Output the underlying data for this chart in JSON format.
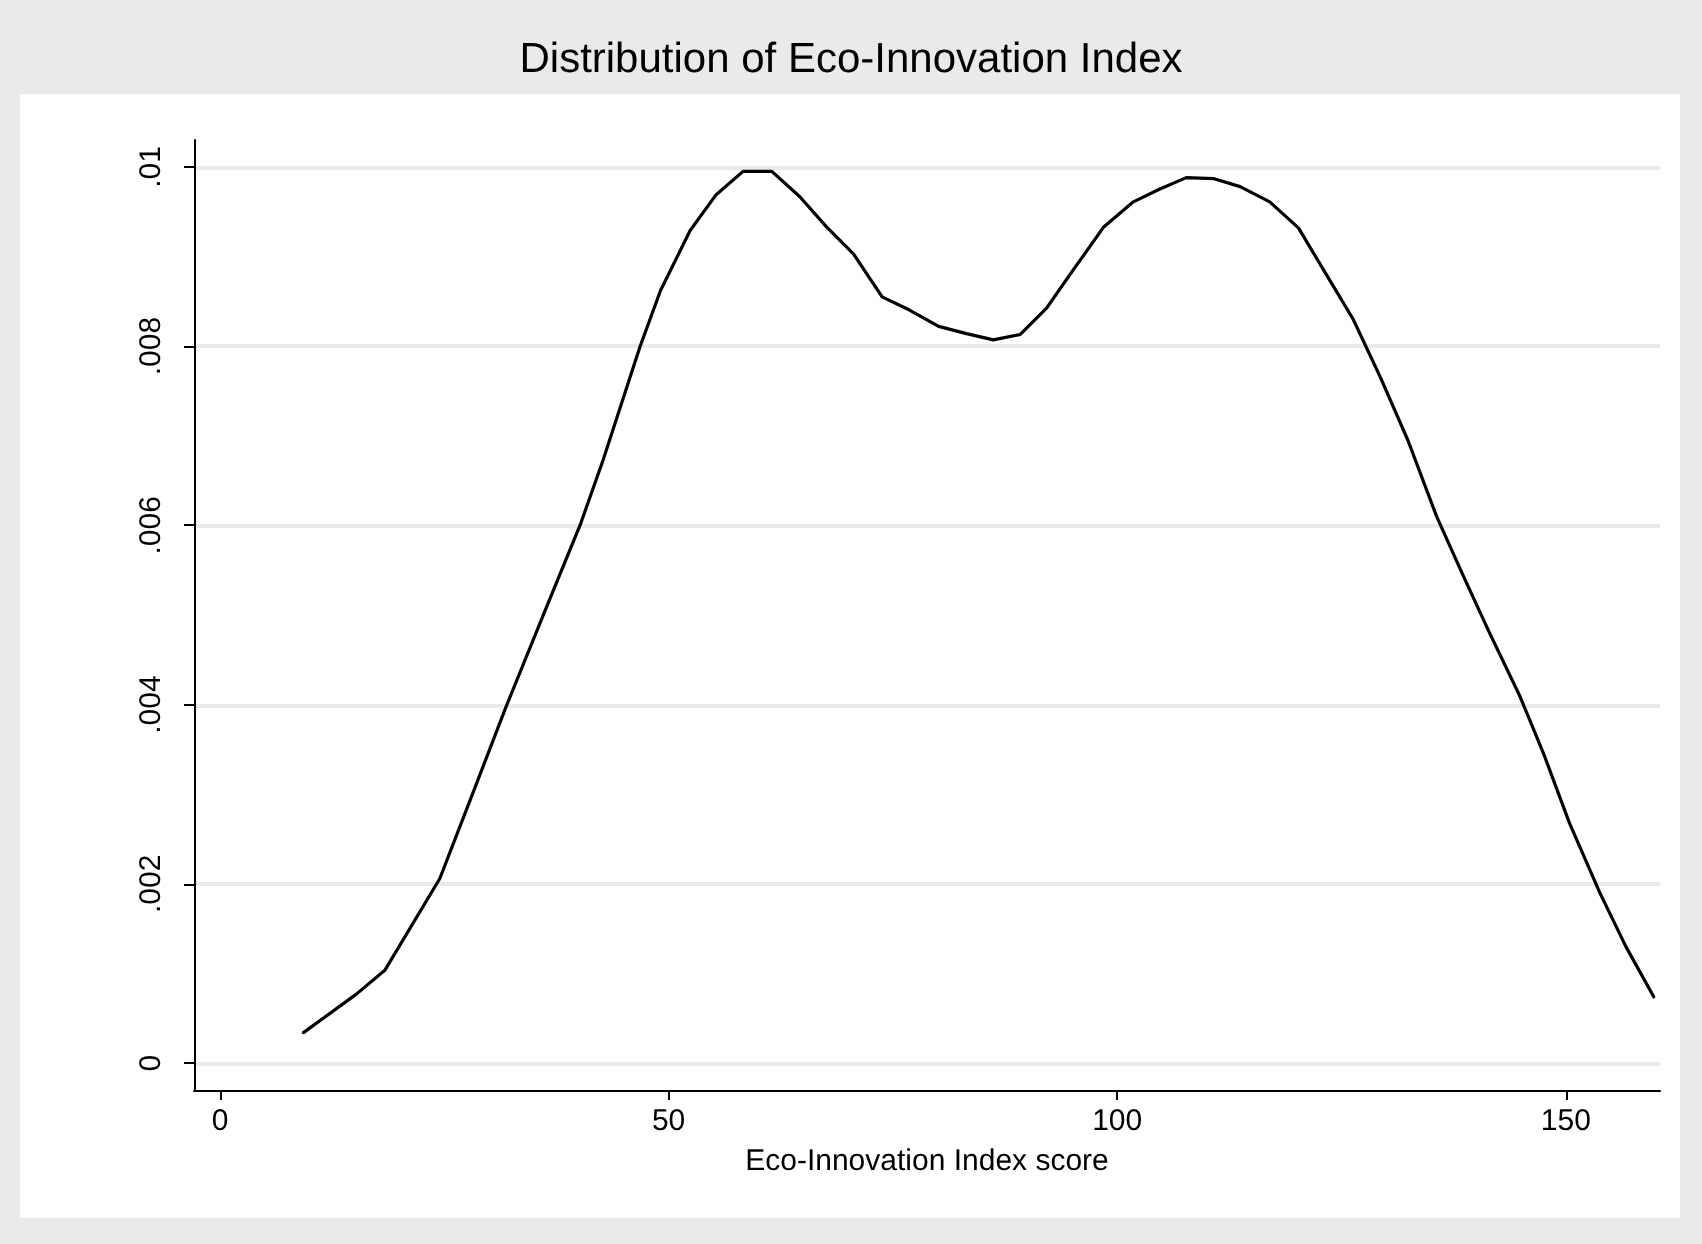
{
  "chart_data": {
    "type": "line",
    "title": "Distribution of Eco-Innovation Index",
    "xlabel": "Eco-Innovation Index score",
    "x": [
      9.3,
      15.2,
      18.4,
      24.5,
      27.9,
      31.9,
      36.4,
      40.2,
      42.7,
      46.8,
      49.1,
      52.4,
      55.3,
      58.3,
      61.5,
      64.6,
      67.6,
      70.6,
      73.8,
      76.9,
      80.1,
      83.2,
      86.2,
      89.2,
      92.1,
      95.1,
      98.5,
      101.8,
      104.7,
      107.7,
      110.7,
      113.7,
      117.0,
      120.2,
      123.3,
      126.3,
      129.3,
      132.4,
      135.6,
      138.6,
      141.5,
      144.9,
      147.5,
      150.4,
      153.8,
      156.7,
      159.8
    ],
    "series": [
      {
        "color": "#000000",
        "values": [
          0.00034,
          0.00077,
          0.00104,
          0.00206,
          0.00294,
          0.00398,
          0.00509,
          0.00602,
          0.00673,
          0.00799,
          0.00862,
          0.00929,
          0.00969,
          0.00995,
          0.00995,
          0.00967,
          0.00933,
          0.00903,
          0.00855,
          0.0084,
          0.00822,
          0.00814,
          0.00807,
          0.00813,
          0.00842,
          0.00885,
          0.00933,
          0.00961,
          0.00975,
          0.00988,
          0.00987,
          0.00978,
          0.00961,
          0.00932,
          0.0088,
          0.0083,
          0.00766,
          0.00695,
          0.0061,
          0.00543,
          0.0048,
          0.00409,
          0.00346,
          0.00268,
          0.0019,
          0.0013,
          0.00074
        ]
      }
    ],
    "xlim": [
      -2.9,
      160.5
    ],
    "xticks": [
      0,
      50,
      100,
      150
    ],
    "ylim": [
      -0.0003,
      0.0103
    ],
    "yticks": [
      0,
      {
        "value": 0.002,
        "label": ".002"
      },
      {
        "value": 0.004,
        "label": ".004"
      },
      {
        "value": 0.006,
        "label": ".006"
      },
      {
        "value": 0.008,
        "label": ".008"
      },
      {
        "value": 0.01,
        "label": ".01"
      }
    ],
    "grid": "y",
    "marker": "none",
    "line_style": "solid"
  }
}
